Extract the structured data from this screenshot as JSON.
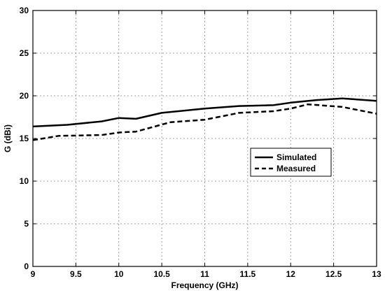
{
  "chart_data": {
    "type": "line",
    "title": "",
    "xlabel": "Frequency (GHz)",
    "ylabel": "G (dBi)",
    "xlim": [
      9,
      13
    ],
    "ylim": [
      0,
      30
    ],
    "xticks": [
      "9",
      "9.5",
      "10",
      "10.5",
      "11",
      "11.5",
      "12",
      "12.5",
      "13"
    ],
    "yticks": [
      "0",
      "5",
      "10",
      "15",
      "20",
      "25",
      "30"
    ],
    "grid": true,
    "legend_position": "right",
    "series": [
      {
        "name": "Simulated",
        "style": "solid",
        "color": "#000000",
        "x": [
          9,
          9.4,
          9.8,
          10,
          10.2,
          10.5,
          11,
          11.4,
          11.8,
          12,
          12.3,
          12.6,
          13
        ],
        "y": [
          16.4,
          16.6,
          17.0,
          17.4,
          17.3,
          18.0,
          18.5,
          18.8,
          18.9,
          19.2,
          19.5,
          19.7,
          19.4
        ]
      },
      {
        "name": "Measured",
        "style": "dashed",
        "color": "#000000",
        "x": [
          9,
          9.3,
          9.8,
          10,
          10.2,
          10.6,
          11,
          11.4,
          11.8,
          12,
          12.2,
          12.6,
          13
        ],
        "y": [
          14.8,
          15.3,
          15.4,
          15.7,
          15.8,
          16.9,
          17.2,
          18.0,
          18.2,
          18.5,
          19.0,
          18.7,
          17.9
        ]
      }
    ]
  }
}
